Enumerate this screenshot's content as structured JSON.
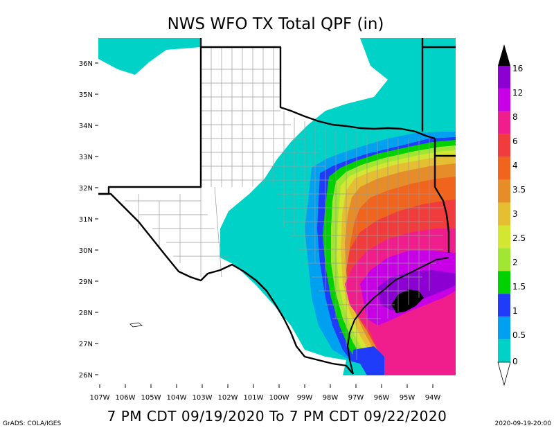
{
  "map": {
    "title": "NWS WFO TX Total QPF (in)",
    "subtitle": "7 PM CDT 09/19/2020 To 7 PM CDT 09/22/2020",
    "credit": "GrADS: COLA/IGES",
    "timestamp": "2020-09-19-20:00",
    "lat_labels": [
      "36N",
      "35N",
      "34N",
      "33N",
      "32N",
      "31N",
      "30N",
      "29N",
      "28N",
      "27N",
      "26N"
    ],
    "lon_labels": [
      "107W",
      "106W",
      "105W",
      "104W",
      "103W",
      "102W",
      "101W",
      "100W",
      "99W",
      "98W",
      "97W",
      "96W",
      "95W",
      "94W"
    ],
    "legend": {
      "labels": [
        "16",
        "12",
        "8",
        "6",
        "4",
        "3.5",
        "3",
        "2.5",
        "2",
        "1.5",
        "1",
        "0.5",
        "0"
      ],
      "colors": [
        "#8c00d2",
        "#c800e6",
        "#f01e8c",
        "#f03c3c",
        "#f0641e",
        "#e68c28",
        "#e6be32",
        "#d2e632",
        "#a0e632",
        "#00d200",
        "#1e3cfa",
        "#00a0f0",
        "#00d2c8"
      ],
      "top_color": "#000000",
      "bottom_color": "#ffffff"
    },
    "colors": {
      "background": "#ffffff",
      "land_no_rain": "#ffffff",
      "light": "#00d2c8",
      "county_lines": "#9a9a9a"
    }
  }
}
